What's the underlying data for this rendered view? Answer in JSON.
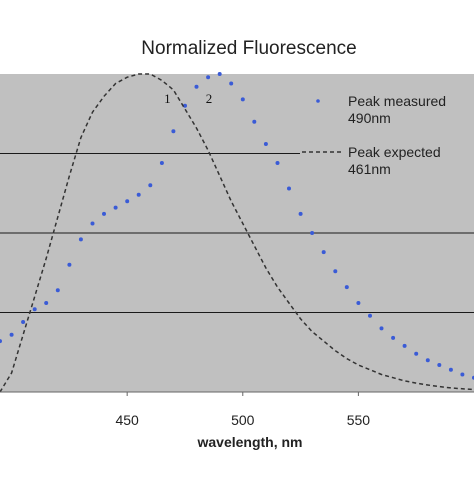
{
  "chart_data": {
    "type": "scatter",
    "title": "Normalized Fluorescence",
    "xlabel": "wavelength, nm",
    "ylabel": "",
    "xlim": [
      395,
      600
    ],
    "ylim": [
      0,
      1.0
    ],
    "x_ticks": [
      450,
      500,
      550
    ],
    "plot_background": "#c0c0c0",
    "grid": "horizontal",
    "legend_placement": "right",
    "series": [
      {
        "name": "Peak measured\n490nm",
        "style": "dots",
        "color": "#3a5bd6",
        "x": [
          395,
          400,
          405,
          410,
          415,
          420,
          425,
          430,
          435,
          440,
          445,
          450,
          455,
          460,
          465,
          470,
          475,
          480,
          485,
          490,
          495,
          500,
          505,
          510,
          515,
          520,
          525,
          530,
          535,
          540,
          545,
          550,
          555,
          560,
          565,
          570,
          575,
          580,
          585,
          590,
          595,
          600
        ],
        "values": [
          0.16,
          0.18,
          0.22,
          0.26,
          0.28,
          0.32,
          0.4,
          0.48,
          0.53,
          0.56,
          0.58,
          0.6,
          0.62,
          0.65,
          0.72,
          0.82,
          0.9,
          0.96,
          0.99,
          1.0,
          0.97,
          0.92,
          0.85,
          0.78,
          0.72,
          0.64,
          0.56,
          0.5,
          0.44,
          0.38,
          0.33,
          0.28,
          0.24,
          0.2,
          0.17,
          0.145,
          0.12,
          0.1,
          0.085,
          0.07,
          0.055,
          0.045
        ]
      },
      {
        "name": "Peak expected\n461nm",
        "style": "dashed",
        "color": "#333333",
        "x": [
          395,
          400,
          405,
          410,
          415,
          420,
          425,
          430,
          435,
          440,
          445,
          450,
          455,
          460,
          465,
          470,
          475,
          480,
          485,
          490,
          495,
          500,
          505,
          510,
          515,
          520,
          525,
          530,
          535,
          540,
          545,
          550,
          555,
          560,
          565,
          570,
          575,
          580,
          585,
          590,
          595,
          600
        ],
        "values": [
          0.0,
          0.06,
          0.18,
          0.3,
          0.42,
          0.55,
          0.68,
          0.8,
          0.88,
          0.93,
          0.97,
          0.99,
          1.0,
          1.0,
          0.98,
          0.95,
          0.89,
          0.83,
          0.76,
          0.68,
          0.6,
          0.53,
          0.46,
          0.39,
          0.33,
          0.28,
          0.23,
          0.19,
          0.16,
          0.13,
          0.105,
          0.085,
          0.07,
          0.055,
          0.045,
          0.035,
          0.028,
          0.022,
          0.017,
          0.013,
          0.01,
          0.008
        ]
      }
    ],
    "annotations": [
      {
        "text": "1",
        "x": 466,
        "y": 0.965
      },
      {
        "text": "2",
        "x": 484,
        "y": 0.965
      }
    ]
  }
}
